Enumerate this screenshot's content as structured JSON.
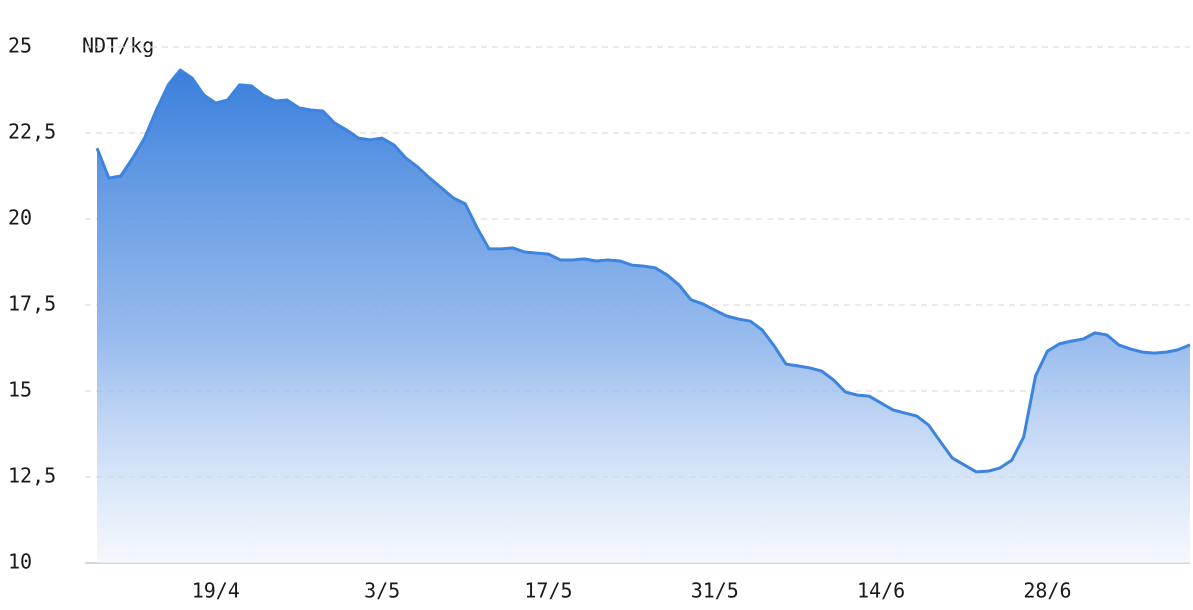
{
  "chart_data": {
    "type": "area",
    "y_label": "NDT/kg",
    "color": "#3d84de",
    "grid": true,
    "ylim": [
      10,
      25
    ],
    "yticks": [
      10,
      {
        "value": 12.5,
        "label": "12,5"
      },
      15,
      {
        "value": 17.5,
        "label": "17,5"
      },
      20,
      {
        "value": 22.5,
        "label": "22,5"
      },
      25
    ],
    "categories": [
      null,
      null,
      null,
      null,
      null,
      null,
      null,
      null,
      null,
      null,
      "19/4",
      null,
      null,
      null,
      null,
      null,
      null,
      null,
      null,
      null,
      null,
      null,
      null,
      null,
      "3/5",
      null,
      null,
      null,
      null,
      null,
      null,
      null,
      null,
      null,
      null,
      null,
      null,
      null,
      "17/5",
      null,
      null,
      null,
      null,
      null,
      null,
      null,
      null,
      null,
      null,
      null,
      null,
      null,
      "31/5",
      null,
      null,
      null,
      null,
      null,
      null,
      null,
      null,
      null,
      null,
      null,
      null,
      null,
      "14/6",
      null,
      null,
      null,
      null,
      null,
      null,
      null,
      null,
      null,
      null,
      null,
      null,
      null,
      "28/6",
      null,
      null,
      null,
      null,
      null,
      null,
      null,
      null,
      null,
      null,
      null,
      null
    ],
    "values": [
      22.06,
      21.19,
      21.25,
      21.77,
      22.35,
      23.17,
      23.9,
      24.33,
      24.1,
      23.6,
      23.37,
      23.46,
      23.9,
      23.87,
      23.6,
      23.43,
      23.46,
      23.23,
      23.17,
      23.14,
      22.79,
      22.59,
      22.35,
      22.3,
      22.35,
      22.15,
      21.77,
      21.51,
      21.19,
      20.9,
      20.61,
      20.44,
      19.74,
      19.13,
      19.13,
      19.16,
      19.04,
      19.01,
      18.98,
      18.81,
      18.81,
      18.84,
      18.78,
      18.81,
      18.78,
      18.66,
      18.63,
      18.58,
      18.37,
      18.08,
      17.65,
      17.53,
      17.35,
      17.18,
      17.09,
      17.03,
      16.77,
      16.31,
      15.78,
      15.73,
      15.67,
      15.58,
      15.32,
      14.97,
      14.88,
      14.85,
      14.65,
      14.45,
      14.36,
      14.27,
      14.01,
      13.52,
      13.05,
      12.85,
      12.65,
      12.67,
      12.76,
      12.99,
      13.66,
      15.44,
      16.16,
      16.37,
      16.45,
      16.51,
      16.69,
      16.63,
      16.34,
      16.22,
      16.13,
      16.1,
      16.13,
      16.2,
      16.34
    ]
  }
}
